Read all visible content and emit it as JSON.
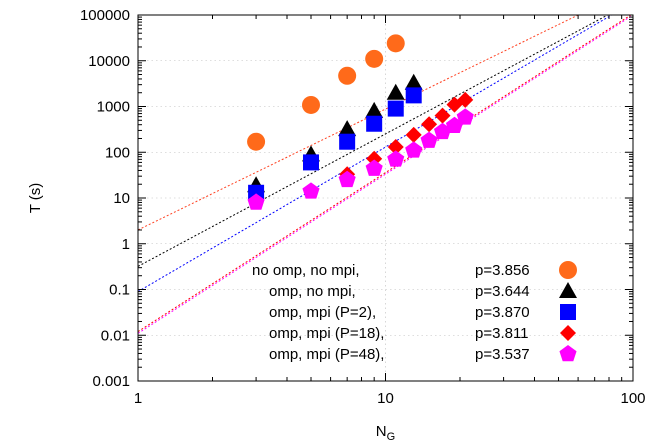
{
  "chart_data": {
    "type": "scatter",
    "title": "",
    "xlabel": {
      "main": "N",
      "sub": "G"
    },
    "ylabel": "T (s)",
    "xscale": "log",
    "yscale": "log",
    "xlim": [
      1,
      100
    ],
    "ylim": [
      0.001,
      100000
    ],
    "x_ticks": [
      1,
      10,
      100
    ],
    "x_tick_labels": [
      "1",
      "10",
      "100"
    ],
    "y_ticks": [
      0.001,
      0.01,
      0.1,
      1,
      10,
      100,
      1000,
      10000,
      100000
    ],
    "y_tick_labels": [
      "0.001",
      "0.01",
      "0.1",
      "1",
      "10",
      "100",
      "1000",
      "10000",
      "100000"
    ],
    "grid": true,
    "legend_position": "bottom-right",
    "series": [
      {
        "name": "no omp, no mpi,",
        "p_label": "p=3.856",
        "marker": "circle",
        "color": "#ff6a1a",
        "fit_color": "#ff4020",
        "fit": [
          [
            1,
            2.0
          ],
          [
            60,
            100000
          ]
        ],
        "points": [
          [
            3,
            170
          ],
          [
            5,
            1080
          ],
          [
            7,
            4700
          ],
          [
            9,
            11000
          ],
          [
            11,
            24000
          ]
        ]
      },
      {
        "name": "omp, no mpi,",
        "p_label": "p=3.644",
        "marker": "triangle",
        "color": "#000000",
        "fit_color": "#000000",
        "fit": [
          [
            1,
            0.32
          ],
          [
            79,
            100000
          ]
        ],
        "points": [
          [
            3,
            19
          ],
          [
            5,
            90
          ],
          [
            7,
            320
          ],
          [
            9,
            800
          ],
          [
            11,
            2000
          ],
          [
            13,
            3300
          ]
        ]
      },
      {
        "name": "omp,      mpi (P=2),",
        "p_label": "p=3.870",
        "marker": "square",
        "color": "#0000ff",
        "fit_color": "#0000ff",
        "fit": [
          [
            1,
            0.09
          ],
          [
            82,
            100000
          ]
        ],
        "points": [
          [
            3,
            13
          ],
          [
            5,
            60
          ],
          [
            7,
            170
          ],
          [
            9,
            420
          ],
          [
            11,
            900
          ],
          [
            13,
            1750
          ]
        ]
      },
      {
        "name": "omp,      mpi (P=18),",
        "p_label": "p=3.811",
        "marker": "diamond",
        "color": "#ff0000",
        "fit_color": "#ff0000",
        "fit": [
          [
            1,
            0.012
          ],
          [
            98,
            100000
          ]
        ],
        "points": [
          [
            7,
            33
          ],
          [
            9,
            72
          ],
          [
            11,
            130
          ],
          [
            13,
            240
          ],
          [
            15,
            410
          ],
          [
            17,
            630
          ],
          [
            19,
            1100
          ],
          [
            21,
            1400
          ]
        ]
      },
      {
        "name": "omp,      mpi (P=48),",
        "p_label": "p=3.537",
        "marker": "pentagon",
        "color": "#ff00ff",
        "fit_color": "#ff00ff",
        "fit": [
          [
            1,
            0.011
          ],
          [
            100,
            100000
          ]
        ],
        "points": [
          [
            3,
            8
          ],
          [
            5,
            14
          ],
          [
            7,
            25
          ],
          [
            9,
            44
          ],
          [
            11,
            70
          ],
          [
            13,
            110
          ],
          [
            15,
            180
          ],
          [
            17,
            280
          ],
          [
            19,
            380
          ],
          [
            21,
            580
          ]
        ]
      }
    ]
  }
}
